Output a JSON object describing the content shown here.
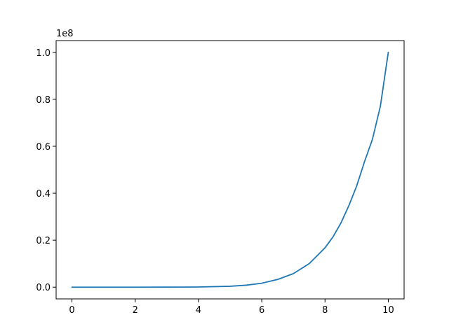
{
  "chart_data": {
    "type": "line",
    "title": "",
    "xlabel": "",
    "ylabel": "",
    "xlim": [
      -0.5,
      10.5
    ],
    "ylim": [
      -5000000,
      105000000
    ],
    "y_scale_label": "1e8",
    "x_ticks": [
      {
        "value": 0,
        "label": "0"
      },
      {
        "value": 2,
        "label": "2"
      },
      {
        "value": 4,
        "label": "4"
      },
      {
        "value": 6,
        "label": "6"
      },
      {
        "value": 8,
        "label": "8"
      },
      {
        "value": 10,
        "label": "10"
      }
    ],
    "y_ticks": [
      {
        "value": 0,
        "label": "0.0"
      },
      {
        "value": 20000000,
        "label": "0.2"
      },
      {
        "value": 40000000,
        "label": "0.4"
      },
      {
        "value": 60000000,
        "label": "0.6"
      },
      {
        "value": 80000000,
        "label": "0.8"
      },
      {
        "value": 100000000,
        "label": "1.0"
      }
    ],
    "grid": false,
    "series": [
      {
        "color": "#1f77b4",
        "x": [
          0,
          1,
          2,
          3,
          4,
          5,
          5.5,
          6,
          6.5,
          7,
          7.5,
          8,
          8.25,
          8.5,
          8.75,
          9,
          9.25,
          9.5,
          9.75,
          10
        ],
        "y": [
          0,
          1,
          256,
          6561,
          65536,
          390625,
          830377,
          1679616,
          3262808,
          5764801,
          10011696,
          16777216,
          21355474,
          27249907,
          34597200,
          43046721,
          53502640,
          63024941,
          77063311,
          100000000
        ]
      }
    ]
  }
}
